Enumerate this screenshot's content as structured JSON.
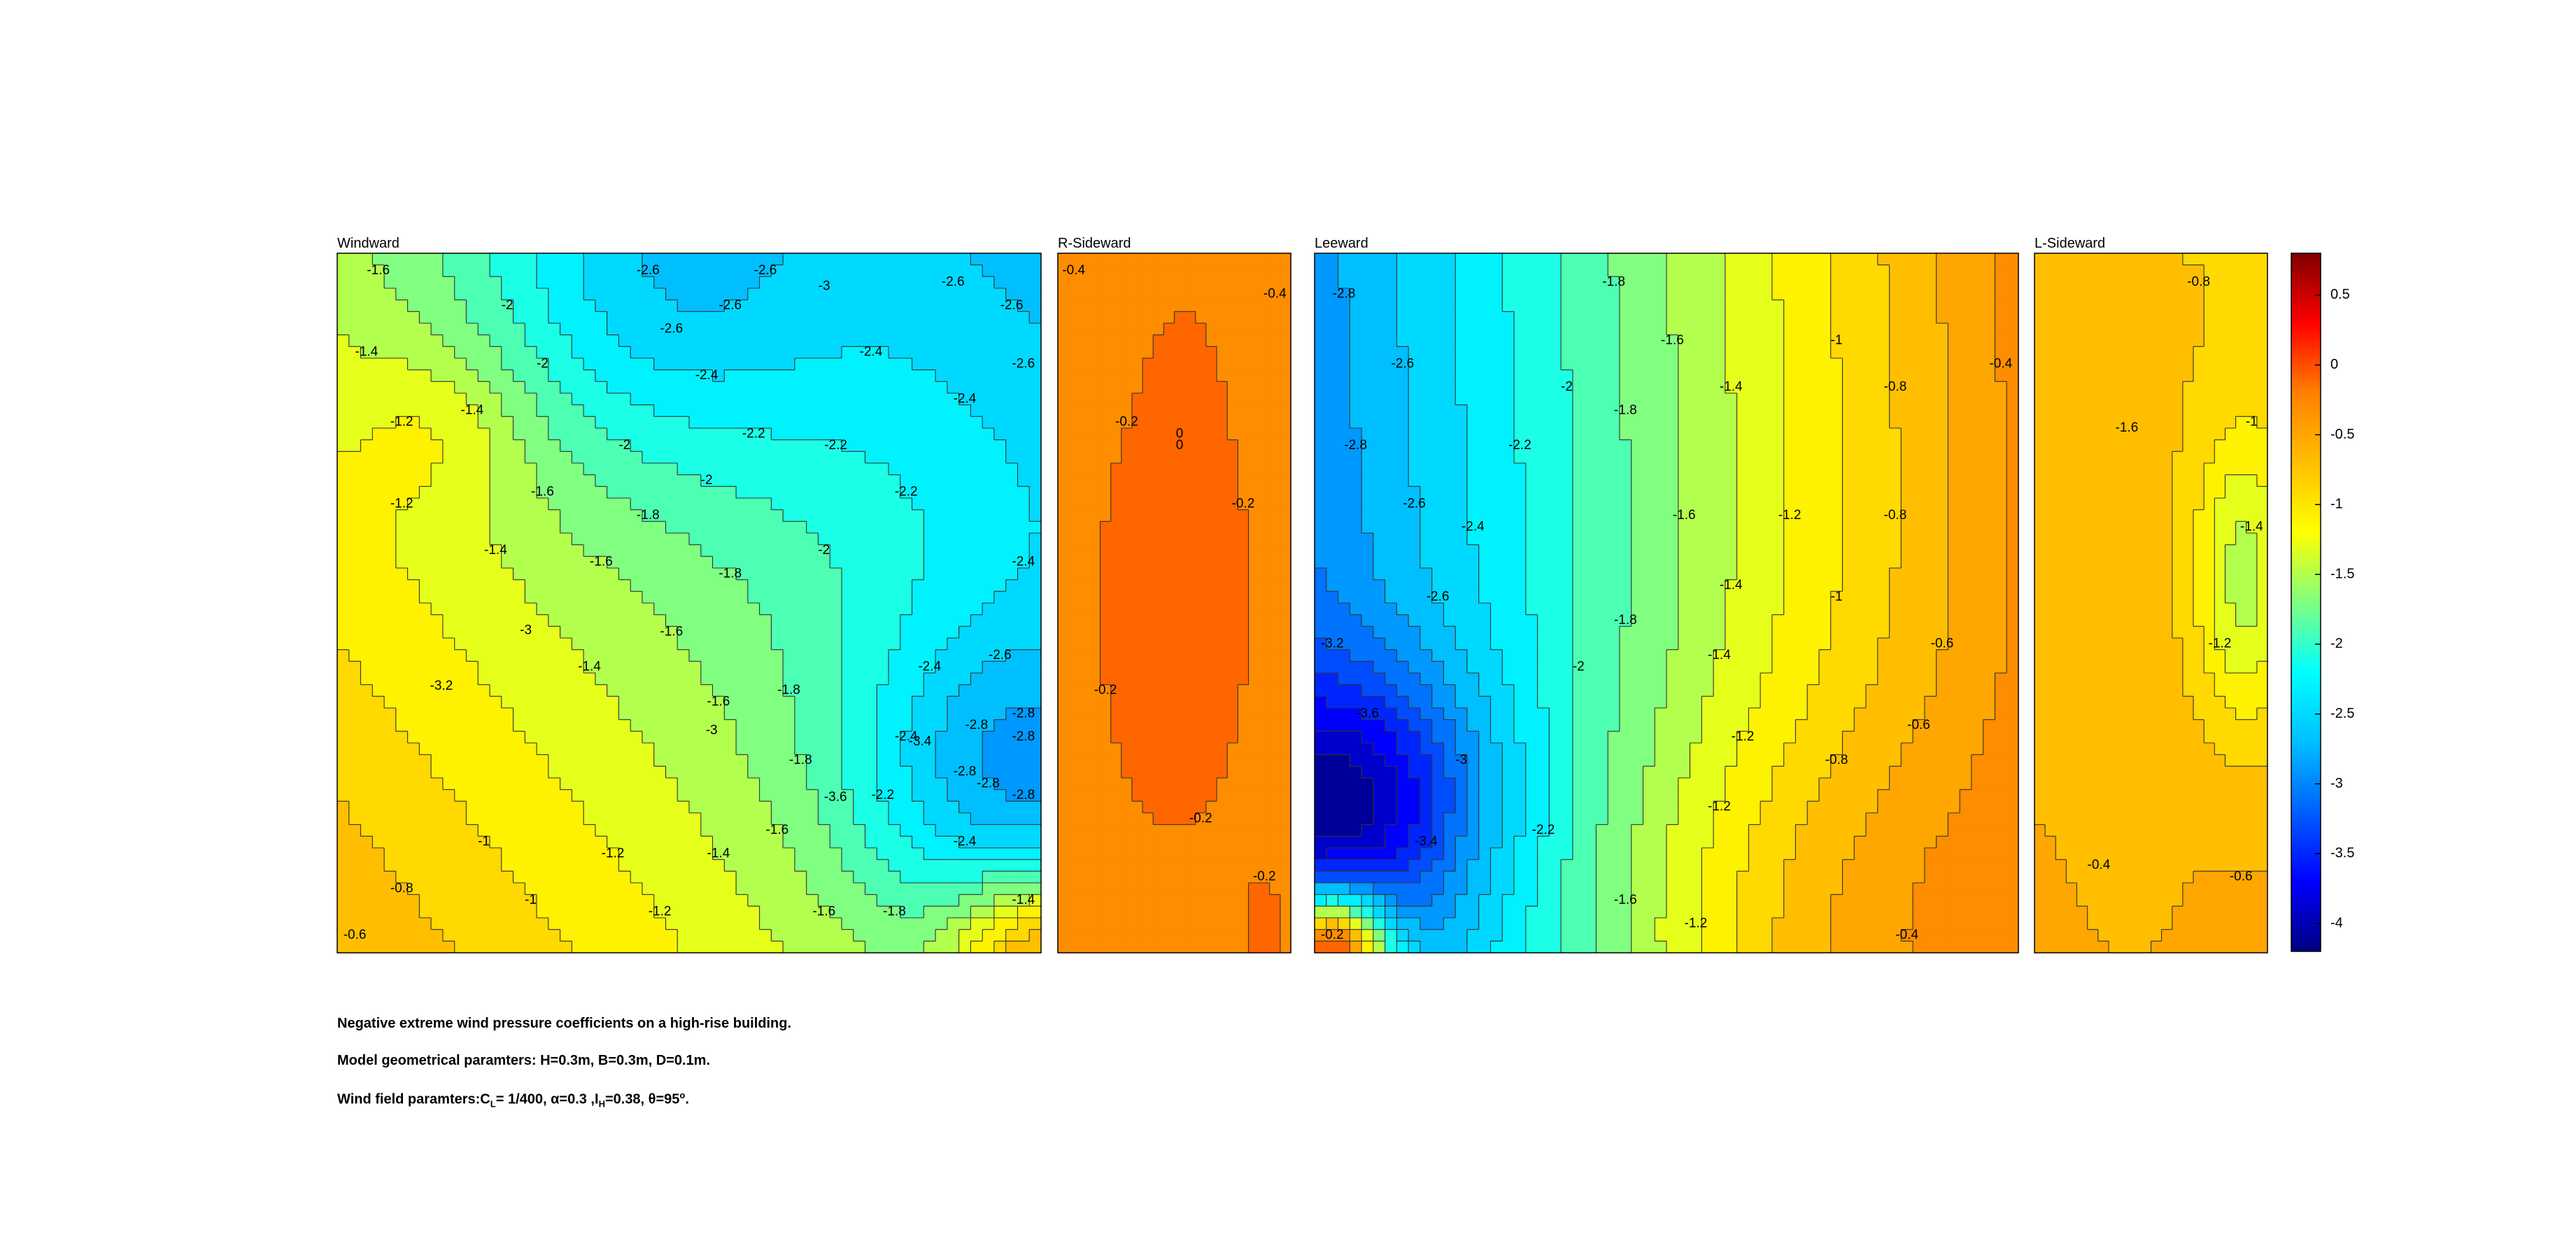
{
  "chart_data": {
    "type": "heatmap",
    "subtype": "filled-contour",
    "panels": [
      {
        "title": "Windward",
        "contour_labels": [
          "-2.4",
          "-2.8",
          "-3",
          "-2.6",
          "-2.6",
          "-2.6",
          "-2.4",
          "-1.6",
          "-1.8",
          "-2",
          "-2.2",
          "-2.4",
          "-2.6",
          "-2.8",
          "-2.8",
          "-1.6",
          "-1.8",
          "-2",
          "-1.4",
          "-1.4",
          "-2.6",
          "-2.4",
          "-1.6",
          "-2.2",
          "-2.4",
          "-2.6",
          "-2",
          "-1.4",
          "-1.6",
          "-1.8",
          "-2.6",
          "-2.8",
          "-2.8",
          "-3",
          "-1.2",
          "-2.4",
          "-2.2",
          "-1.4",
          "-3.2",
          "-1.6",
          "-1.8",
          "-2",
          "-3",
          "-3.4",
          "-1",
          "-2.8",
          "-1.2",
          "-2.6",
          "-3.6",
          "-1.4",
          "-2.2",
          "-2.4",
          "-1.6",
          "-1.8",
          "-2",
          "-1.6",
          "-0.6",
          "-0.8",
          "-1",
          "-1.2",
          "-1.4",
          "-1.2"
        ],
        "field_range": [
          -3.8,
          -0.4
        ]
      },
      {
        "title": "R-Sideward",
        "contour_labels": [
          "-0.2",
          "0",
          "-0.2",
          "-0.2",
          "-0.4",
          "-0.2",
          "-0.4",
          "-0.2",
          "0"
        ],
        "field_range": [
          -0.5,
          0.1
        ]
      },
      {
        "title": "Leeward",
        "contour_labels": [
          "-2.6",
          "-2.2",
          "-2",
          "-1.6",
          "-1.2",
          "-2.8",
          "-2.6",
          "-1.8",
          "-1.4",
          "-1.6",
          "-1.4",
          "-1.8",
          "-2.8",
          "-1.2",
          "-0.8",
          "-3",
          "-3.2",
          "-1.4",
          "-1",
          "-1.2",
          "-2",
          "-3.4",
          "-2.4",
          "-1.6",
          "-2.2",
          "-0.8",
          "-3.6",
          "-2.6",
          "-1.8",
          "-1",
          "-1.2",
          "-0.6",
          "-0.8",
          "-0.4",
          "-0.6",
          "-0.4",
          "-0.2"
        ],
        "field_range": [
          -4.1,
          -0.1
        ]
      },
      {
        "title": "L-Sideward",
        "contour_labels": [
          "-0.8",
          "-1.6",
          "-1.4",
          "-1.2",
          "-1",
          "-0.6",
          "-0.4"
        ],
        "field_range": [
          -1.8,
          -0.4
        ]
      }
    ],
    "colorbar": {
      "ticks": [
        "0.5",
        "0",
        "-0.5",
        "-1",
        "-1.5",
        "-2",
        "-2.5",
        "-3",
        "-3.5",
        "-4"
      ],
      "ylim": [
        -4.2,
        0.8
      ],
      "colormap": "jet"
    },
    "colors": {
      "contour_line": "#333333",
      "axis": "#000000"
    }
  },
  "caption": {
    "line1": "Negative extreme wind pressure coefficients on a high-rise building.",
    "line2": "Model geometrical paramters: H=0.3m, B=0.3m, D=0.1m.",
    "line3_prefix": "Wind field paramters:C",
    "line3_sub": "L",
    "line3_mid": "= 1/400, α=0.3 ,I",
    "line3_sub2": "H",
    "line3_mid2": "=0.38, θ=95",
    "line3_sup": "o",
    "line3_suffix": "."
  }
}
